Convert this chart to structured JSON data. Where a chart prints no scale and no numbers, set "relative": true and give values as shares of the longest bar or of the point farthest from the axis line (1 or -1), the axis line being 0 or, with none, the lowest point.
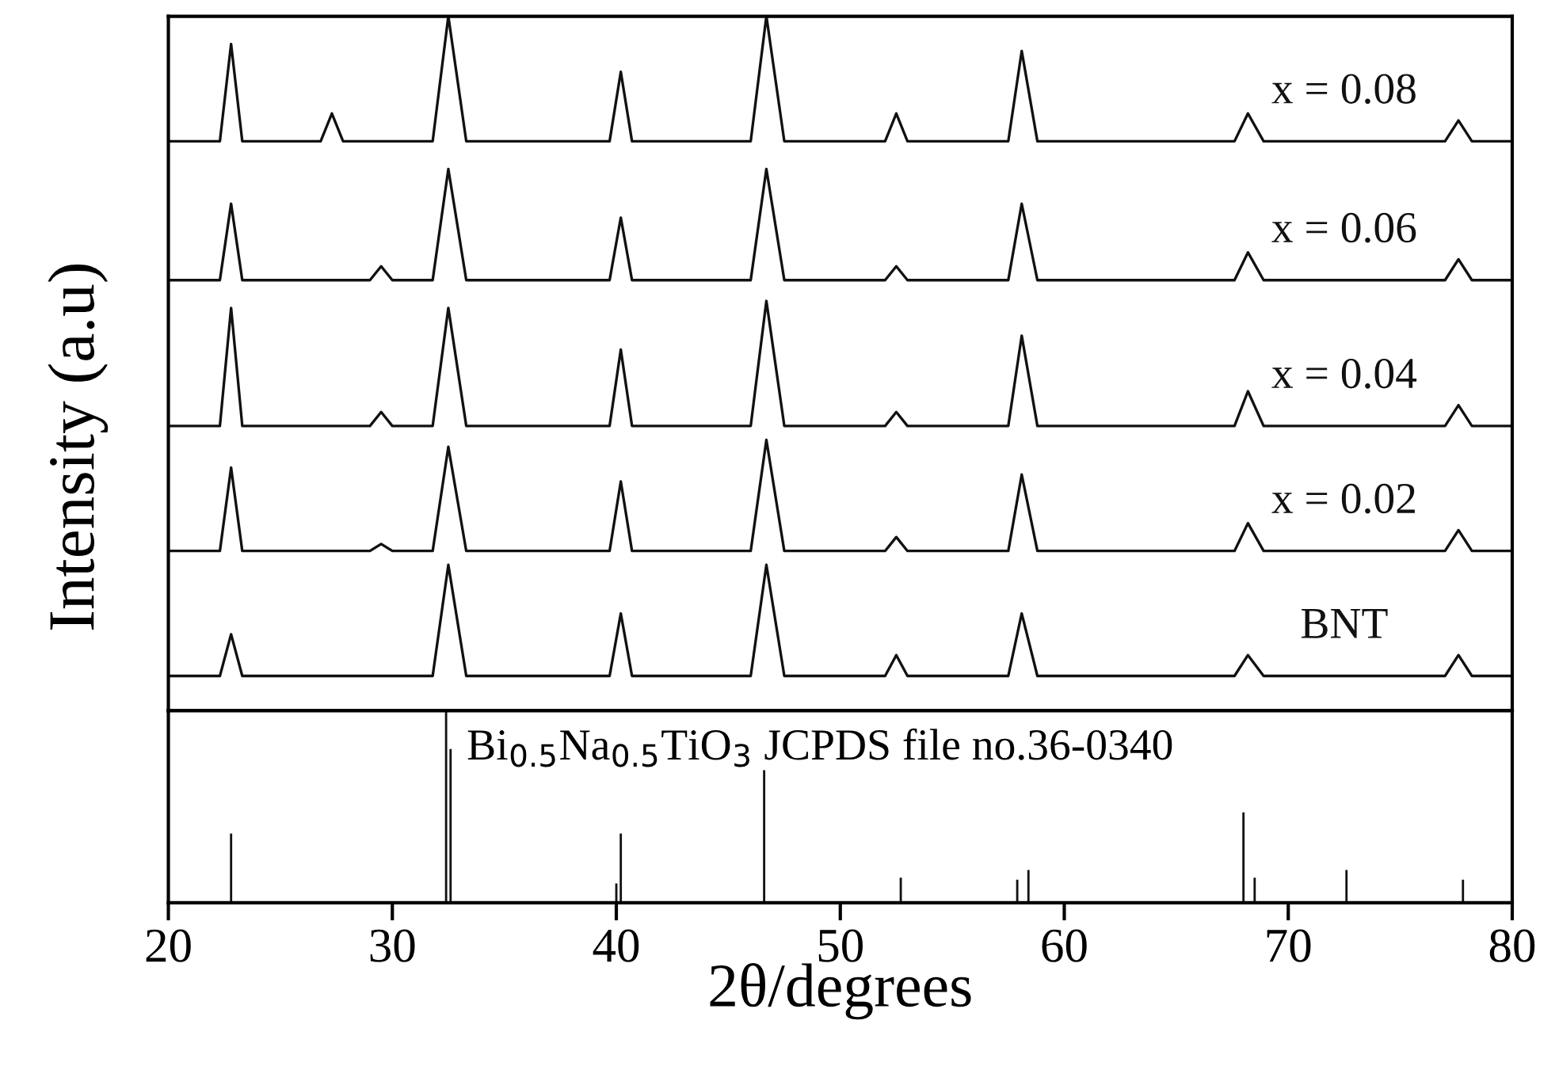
{
  "chart_data": [
    {
      "type": "line",
      "relative": true,
      "xlim": [
        20,
        80
      ],
      "ylabel": "Intensity (a.u)",
      "grid": false,
      "legend": false,
      "marker": "none",
      "line_style": "solid",
      "series": [
        {
          "name": "x = 0.08",
          "color": "#111111",
          "x": [
            20,
            22.3,
            22.8,
            23.3,
            26.8,
            27.3,
            27.8,
            31.8,
            32.5,
            33.3,
            39.7,
            40.2,
            40.7,
            46.0,
            46.7,
            47.5,
            52.0,
            52.5,
            53.0,
            57.5,
            58.1,
            58.8,
            67.6,
            68.2,
            68.9,
            77.0,
            77.6,
            78.2,
            80
          ],
          "values": [
            0.82,
            0.82,
            0.96,
            0.82,
            0.82,
            0.86,
            0.82,
            0.82,
            1.0,
            0.82,
            0.82,
            0.92,
            0.82,
            0.82,
            1.0,
            0.82,
            0.82,
            0.86,
            0.82,
            0.82,
            0.95,
            0.82,
            0.82,
            0.86,
            0.82,
            0.82,
            0.85,
            0.82,
            0.82
          ]
        },
        {
          "name": "x = 0.06",
          "color": "#111111",
          "x": [
            20,
            22.3,
            22.8,
            23.3,
            29.0,
            29.5,
            30.0,
            31.8,
            32.5,
            33.3,
            39.7,
            40.2,
            40.7,
            46.0,
            46.7,
            47.5,
            52.0,
            52.5,
            53.0,
            57.5,
            58.1,
            58.8,
            67.6,
            68.2,
            68.9,
            77.0,
            77.6,
            78.2,
            80
          ],
          "values": [
            0.62,
            0.62,
            0.73,
            0.62,
            0.62,
            0.64,
            0.62,
            0.62,
            0.78,
            0.62,
            0.62,
            0.71,
            0.62,
            0.62,
            0.78,
            0.62,
            0.62,
            0.64,
            0.62,
            0.62,
            0.73,
            0.62,
            0.62,
            0.66,
            0.62,
            0.62,
            0.65,
            0.62,
            0.62
          ]
        },
        {
          "name": "x = 0.04",
          "color": "#111111",
          "x": [
            20,
            22.3,
            22.8,
            23.3,
            29.0,
            29.5,
            30.0,
            31.8,
            32.5,
            33.3,
            39.7,
            40.2,
            40.7,
            46.0,
            46.7,
            47.5,
            52.0,
            52.5,
            53.0,
            57.5,
            58.1,
            58.8,
            67.6,
            68.2,
            68.9,
            77.0,
            77.6,
            78.2,
            80
          ],
          "values": [
            0.41,
            0.41,
            0.58,
            0.41,
            0.41,
            0.43,
            0.41,
            0.41,
            0.58,
            0.41,
            0.41,
            0.52,
            0.41,
            0.41,
            0.59,
            0.41,
            0.41,
            0.43,
            0.41,
            0.41,
            0.54,
            0.41,
            0.41,
            0.46,
            0.41,
            0.41,
            0.44,
            0.41,
            0.41
          ]
        },
        {
          "name": "x = 0.02",
          "color": "#111111",
          "x": [
            20,
            22.3,
            22.8,
            23.3,
            29.0,
            29.5,
            30.0,
            31.8,
            32.5,
            33.3,
            39.7,
            40.2,
            40.7,
            46.0,
            46.7,
            47.5,
            52.0,
            52.5,
            53.0,
            57.5,
            58.1,
            58.8,
            67.6,
            68.2,
            68.9,
            77.0,
            77.6,
            78.2,
            80
          ],
          "values": [
            0.23,
            0.23,
            0.35,
            0.23,
            0.23,
            0.24,
            0.23,
            0.23,
            0.38,
            0.23,
            0.23,
            0.33,
            0.23,
            0.23,
            0.39,
            0.23,
            0.23,
            0.25,
            0.23,
            0.23,
            0.34,
            0.23,
            0.23,
            0.27,
            0.23,
            0.23,
            0.26,
            0.23,
            0.23
          ]
        },
        {
          "name": "BNT",
          "color": "#111111",
          "x": [
            20,
            22.3,
            22.8,
            23.3,
            31.8,
            32.5,
            33.3,
            39.7,
            40.2,
            40.7,
            46.0,
            46.7,
            47.5,
            52.0,
            52.5,
            53.0,
            57.5,
            58.1,
            58.8,
            67.6,
            68.2,
            68.9,
            77.0,
            77.6,
            78.2,
            80
          ],
          "values": [
            0.05,
            0.05,
            0.11,
            0.05,
            0.05,
            0.21,
            0.05,
            0.05,
            0.14,
            0.05,
            0.05,
            0.21,
            0.05,
            0.05,
            0.08,
            0.05,
            0.05,
            0.14,
            0.05,
            0.05,
            0.08,
            0.05,
            0.05,
            0.08,
            0.05,
            0.05
          ]
        }
      ]
    },
    {
      "type": "bar",
      "relative": true,
      "xlim": [
        20,
        80
      ],
      "xticks": [
        20,
        30,
        40,
        50,
        60,
        70,
        80
      ],
      "xlabel": "2θ/degrees",
      "grid": false,
      "color": "#111111",
      "x": [
        22.8,
        32.4,
        32.6,
        40.0,
        40.2,
        46.6,
        52.7,
        57.9,
        58.4,
        68.0,
        68.5,
        72.6,
        77.8
      ],
      "values": [
        0.36,
        1.0,
        0.8,
        0.1,
        0.36,
        0.69,
        0.13,
        0.12,
        0.17,
        0.47,
        0.13,
        0.17,
        0.12
      ],
      "annotations": [
        "Bi$_{0.5}$Na$_{0.5}$TiO$_{3}$ JCPDS file no.36-0340"
      ]
    }
  ]
}
